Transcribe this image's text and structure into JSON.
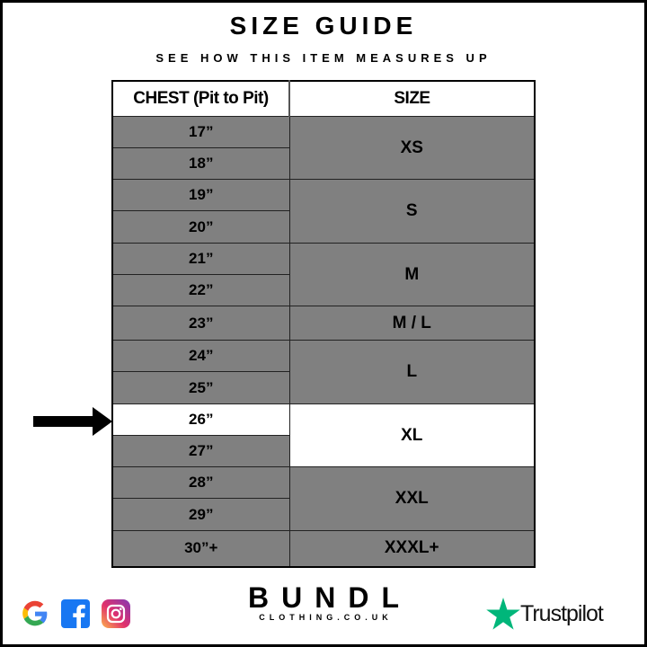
{
  "title": "SIZE GUIDE",
  "subtitle": "SEE HOW THIS ITEM MEASURES UP",
  "table": {
    "headers": [
      "CHEST (Pit to Pit)",
      "SIZE"
    ],
    "rows": [
      {
        "chest": "17”",
        "size": "XS",
        "span": 2,
        "h": 35
      },
      {
        "chest": "18”",
        "h": 35
      },
      {
        "chest": "19”",
        "size": "S",
        "span": 2,
        "h": 35
      },
      {
        "chest": "20”",
        "h": 36
      },
      {
        "chest": "21”",
        "size": "M",
        "span": 2,
        "h": 35
      },
      {
        "chest": "22”",
        "h": 35
      },
      {
        "chest": "23”",
        "size": "M / L",
        "span": 1,
        "h": 38
      },
      {
        "chest": "24”",
        "size": "L",
        "span": 2,
        "h": 35
      },
      {
        "chest": "25”",
        "h": 36
      },
      {
        "chest": "26”",
        "size": "XL",
        "span": 2,
        "h": 35,
        "highlight": true
      },
      {
        "chest": "27”",
        "h": 35
      },
      {
        "chest": "28”",
        "size": "XXL",
        "span": 2,
        "h": 35
      },
      {
        "chest": "29”",
        "h": 36
      },
      {
        "chest": "30”+",
        "size": "XXXL+",
        "span": 1,
        "h": 40
      }
    ],
    "highlighted_size": "XL"
  },
  "brand": {
    "name": "BUNDL",
    "domain": "CLOTHING.CO.UK"
  },
  "social": [
    "google-icon",
    "facebook-icon",
    "instagram-icon"
  ],
  "trustpilot": "Trustpilot",
  "colors": {
    "cell": "#808080",
    "highlight": "#ffffff",
    "trustpilot": "#00b67a"
  }
}
